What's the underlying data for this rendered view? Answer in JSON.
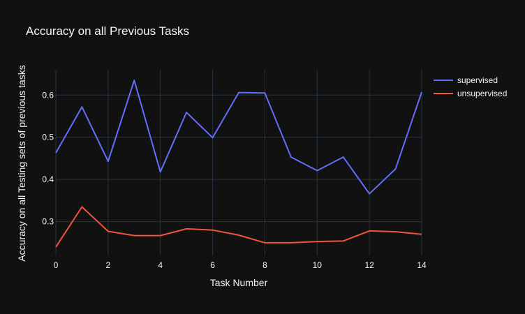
{
  "chart_data": {
    "type": "line",
    "title": "Accuracy on all Previous Tasks",
    "xlabel": "Task Number",
    "ylabel": "Accuracy on all Testing sets of previous tasks",
    "x": [
      0,
      1,
      2,
      3,
      4,
      5,
      6,
      7,
      8,
      9,
      10,
      11,
      12,
      13,
      14
    ],
    "xlim": [
      0,
      14
    ],
    "ylim": [
      0.22,
      0.66
    ],
    "xticks": [
      0,
      2,
      4,
      6,
      8,
      10,
      12,
      14
    ],
    "yticks": [
      0.3,
      0.4,
      0.5,
      0.6
    ],
    "ytick_labels": [
      "0.3",
      "0.4",
      "0.5",
      "0.6"
    ],
    "grid": true,
    "legend_position": "top-right",
    "series": [
      {
        "name": "supervised",
        "color": "#636efa",
        "values": [
          0.463,
          0.572,
          0.443,
          0.635,
          0.418,
          0.559,
          0.499,
          0.606,
          0.605,
          0.453,
          0.421,
          0.453,
          0.366,
          0.425,
          0.607
        ]
      },
      {
        "name": "unsupervised",
        "color": "#ef553b",
        "values": [
          0.24,
          0.335,
          0.277,
          0.267,
          0.267,
          0.283,
          0.28,
          0.268,
          0.25,
          0.25,
          0.253,
          0.254,
          0.278,
          0.276,
          0.27
        ]
      }
    ]
  },
  "colors": {
    "background": "#111111",
    "grid": "#283442",
    "text": "#f2f5fa"
  }
}
